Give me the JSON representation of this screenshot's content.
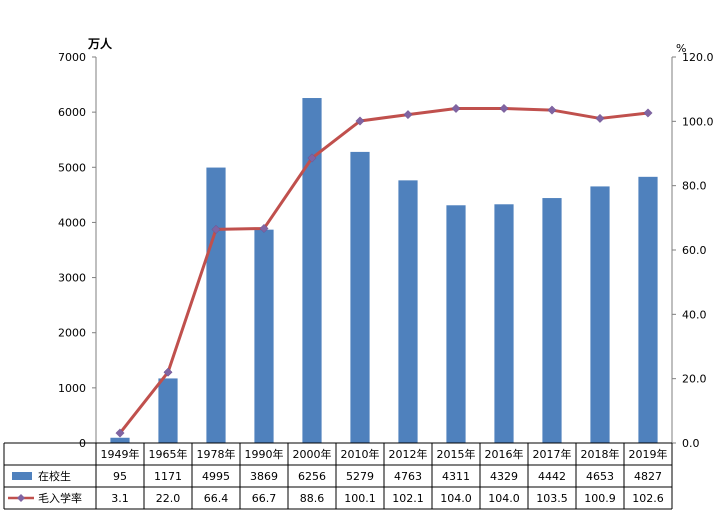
{
  "chart_data": {
    "type": "bar+line",
    "categories": [
      "1949年",
      "1965年",
      "1978年",
      "1990年",
      "2000年",
      "2010年",
      "2012年",
      "2015年",
      "2016年",
      "2017年",
      "2018年",
      "2019年"
    ],
    "series": [
      {
        "name": "在校生",
        "type": "bar",
        "axis": "left",
        "color": "#4f81bd",
        "values": [
          95,
          1171,
          4995,
          3869,
          6256,
          5279,
          4763,
          4311,
          4329,
          4442,
          4653,
          4827
        ],
        "labels": [
          "95",
          "1171",
          "4995",
          "3869",
          "6256",
          "5279",
          "4763",
          "4311",
          "4329",
          "4442",
          "4653",
          "4827"
        ]
      },
      {
        "name": "毛入学率",
        "type": "line",
        "axis": "right",
        "color": "#c0504d",
        "marker_color": "#8064a2",
        "values": [
          3.1,
          22.0,
          66.4,
          66.7,
          88.6,
          100.1,
          102.1,
          104.0,
          104.0,
          103.5,
          100.9,
          102.6
        ],
        "labels": [
          "3.1",
          "22.0",
          "66.4",
          "66.7",
          "88.6",
          "100.1",
          "102.1",
          "104.0",
          "104.0",
          "103.5",
          "100.9",
          "102.6"
        ]
      }
    ],
    "left_axis": {
      "unit": "万人",
      "ylim": [
        0,
        7000
      ],
      "ticks": [
        0,
        1000,
        2000,
        3000,
        4000,
        5000,
        6000,
        7000
      ],
      "tick_labels": [
        "0",
        "1000",
        "2000",
        "3000",
        "4000",
        "5000",
        "6000",
        "7000"
      ]
    },
    "right_axis": {
      "unit": "%",
      "ylim": [
        0,
        120
      ],
      "ticks": [
        0,
        20,
        40,
        60,
        80,
        100,
        120
      ],
      "tick_labels": [
        "0.0",
        "20.0",
        "40.0",
        "60.0",
        "80.0",
        "100.0",
        "120.0"
      ]
    },
    "data_table": true
  }
}
